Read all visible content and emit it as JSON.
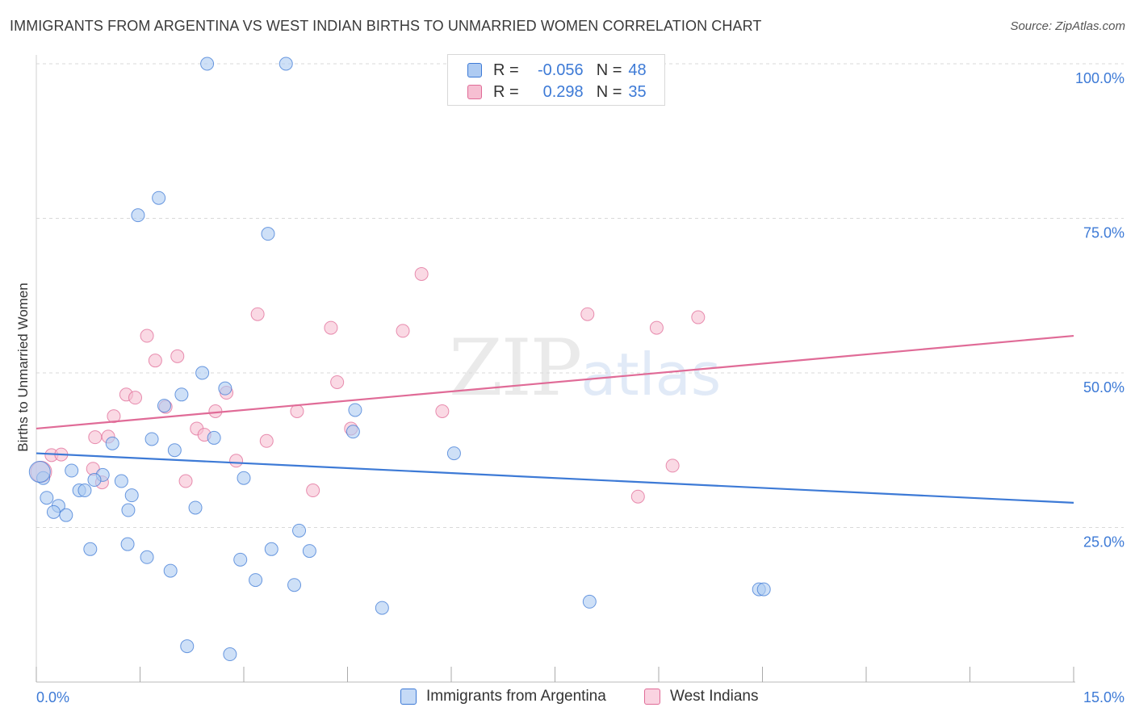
{
  "title": "IMMIGRANTS FROM ARGENTINA VS WEST INDIAN BIRTHS TO UNMARRIED WOMEN CORRELATION CHART",
  "source": "Source: ZipAtlas.com",
  "watermark": {
    "zip": "ZIP",
    "atlas": "atlas"
  },
  "colors": {
    "blue": "#3d7ad6",
    "blue_fill": "#aecbf2",
    "pink": "#e06b97",
    "pink_fill": "#f6bfd2",
    "grid": "#d9d9d9",
    "axis_text": "#3d7ad6"
  },
  "legend": {
    "rows": [
      {
        "r_label": "R =",
        "r_value": "-0.056",
        "n_label": "N =",
        "n_value": "48"
      },
      {
        "r_label": "R =",
        "r_value": "0.298",
        "n_label": "N =",
        "n_value": "35"
      }
    ]
  },
  "bottom_legend": [
    "Immigrants from Argentina",
    "West Indians"
  ],
  "chart_data": {
    "type": "scatter",
    "title": "IMMIGRANTS FROM ARGENTINA VS WEST INDIAN BIRTHS TO UNMARRIED WOMEN CORRELATION CHART",
    "xlabel": "",
    "ylabel": "Births to Unmarried Women",
    "xlim": [
      0,
      15
    ],
    "ylim": [
      0,
      100
    ],
    "x_tick_labels": [
      "0.0%",
      "15.0%"
    ],
    "y_tick_labels": [
      "25.0%",
      "50.0%",
      "75.0%",
      "100.0%"
    ],
    "y_ticks": [
      25,
      50,
      75,
      100
    ],
    "grid": true,
    "legend_position": "top-center",
    "series": [
      {
        "name": "Immigrants from Argentina",
        "color": "#3d7ad6",
        "trend": {
          "x": [
            0,
            15
          ],
          "y": [
            37.0,
            29.0
          ]
        },
        "points": [
          [
            2.47,
            100
          ],
          [
            3.61,
            100
          ],
          [
            1.77,
            78.3
          ],
          [
            1.47,
            75.5
          ],
          [
            3.35,
            72.5
          ],
          [
            2.4,
            50
          ],
          [
            2.73,
            47.5
          ],
          [
            2.1,
            46.5
          ],
          [
            1.85,
            44.7
          ],
          [
            4.61,
            44
          ],
          [
            4.58,
            40.5
          ],
          [
            2.57,
            39.5
          ],
          [
            1.67,
            39.3
          ],
          [
            1.1,
            38.6
          ],
          [
            2.0,
            37.5
          ],
          [
            6.04,
            37
          ],
          [
            0.51,
            34.2
          ],
          [
            0.96,
            33.5
          ],
          [
            0.84,
            32.7
          ],
          [
            1.23,
            32.5
          ],
          [
            3.0,
            33
          ],
          [
            0.1,
            33
          ],
          [
            0.62,
            31
          ],
          [
            0.7,
            31
          ],
          [
            1.38,
            30.2
          ],
          [
            0.15,
            29.8
          ],
          [
            0.32,
            28.5
          ],
          [
            2.3,
            28.2
          ],
          [
            1.33,
            27.8
          ],
          [
            0.25,
            27.5
          ],
          [
            0.43,
            27
          ],
          [
            3.8,
            24.5
          ],
          [
            1.32,
            22.3
          ],
          [
            0.78,
            21.5
          ],
          [
            3.4,
            21.5
          ],
          [
            3.95,
            21.2
          ],
          [
            1.6,
            20.2
          ],
          [
            2.95,
            19.8
          ],
          [
            1.94,
            18
          ],
          [
            3.17,
            16.5
          ],
          [
            3.73,
            15.7
          ],
          [
            10.45,
            15
          ],
          [
            10.52,
            15
          ],
          [
            8.0,
            13
          ],
          [
            5.0,
            12
          ],
          [
            2.18,
            5.8
          ],
          [
            2.8,
            4.5
          ],
          [
            0.05,
            34
          ]
        ]
      },
      {
        "name": "West Indians",
        "color": "#e06b97",
        "trend": {
          "x": [
            0,
            15
          ],
          "y": [
            41.0,
            56.0
          ]
        },
        "points": [
          [
            5.57,
            66
          ],
          [
            3.2,
            59.5
          ],
          [
            7.97,
            59.5
          ],
          [
            9.57,
            59
          ],
          [
            1.6,
            56
          ],
          [
            4.26,
            57.3
          ],
          [
            5.3,
            56.8
          ],
          [
            8.97,
            57.3
          ],
          [
            2.04,
            52.7
          ],
          [
            1.72,
            52
          ],
          [
            4.35,
            48.5
          ],
          [
            2.75,
            46.8
          ],
          [
            1.3,
            46.5
          ],
          [
            1.43,
            46
          ],
          [
            1.87,
            44.5
          ],
          [
            2.59,
            43.8
          ],
          [
            3.77,
            43.8
          ],
          [
            5.87,
            43.8
          ],
          [
            1.12,
            43
          ],
          [
            2.32,
            41
          ],
          [
            4.55,
            41
          ],
          [
            2.43,
            40
          ],
          [
            0.85,
            39.6
          ],
          [
            1.04,
            39.7
          ],
          [
            3.33,
            39
          ],
          [
            0.22,
            36.7
          ],
          [
            0.36,
            36.8
          ],
          [
            2.89,
            35.8
          ],
          [
            9.2,
            35
          ],
          [
            0.82,
            34.5
          ],
          [
            0.07,
            34
          ],
          [
            2.16,
            32.5
          ],
          [
            0.95,
            32.3
          ],
          [
            4.0,
            31
          ],
          [
            8.7,
            30
          ]
        ]
      }
    ]
  }
}
